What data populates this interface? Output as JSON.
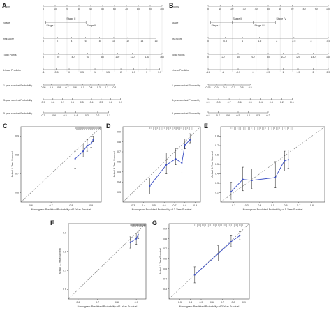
{
  "figure": {
    "colors": {
      "line": "#555555",
      "axis": "#444444",
      "cal_line": "#3b4fc4",
      "bar": "#222222",
      "diag": "#777777",
      "rug": "#666666"
    }
  },
  "nomograms": [
    {
      "letter": "A",
      "rows": [
        {
          "label": "Points",
          "type": "scale",
          "ticks": [
            "0",
            "10",
            "20",
            "30",
            "40",
            "50",
            "60",
            "70",
            "80",
            "90",
            "100"
          ]
        },
        {
          "label": "Stage",
          "type": "stage",
          "items": [
            "Stage I",
            "Stage II",
            "Stage III"
          ]
        },
        {
          "label": "riskScore",
          "type": "scale",
          "ticks": [
            "0",
            "2",
            "4",
            "6",
            "8",
            "10",
            "12",
            "14",
            "16"
          ]
        },
        {
          "label": "Total Points",
          "type": "scale",
          "ticks": [
            "0",
            "20",
            "40",
            "60",
            "80",
            "100",
            "120",
            "140",
            "160"
          ]
        },
        {
          "label": "Linear Predictor",
          "type": "scale",
          "ticks": [
            "-1",
            "-0.5",
            "0",
            "0.5",
            "1",
            "1.5",
            "2",
            "2.5",
            "3",
            "3.5"
          ]
        },
        {
          "label": "1-year survival Probability",
          "type": "scale",
          "ticks": [
            "0.95",
            "0.9",
            "0.8",
            "0.7",
            "0.6",
            "0.5",
            "0.4",
            "0.3",
            "0.2",
            "0.1"
          ]
        },
        {
          "label": "3-year survival Probability",
          "type": "scale",
          "ticks": [
            "0.9",
            "0.8",
            "0.7",
            "0.6",
            "0.5",
            "0.4",
            "0.3",
            "0.2",
            "0.1"
          ]
        },
        {
          "label": "5-year survival Probability",
          "type": "scale",
          "ticks": [
            "0.7",
            "0.6",
            "0.5",
            "0.4",
            "0.3",
            "0.2",
            "0.1"
          ]
        }
      ]
    },
    {
      "letter": "B",
      "rows": [
        {
          "label": "Points",
          "type": "scale",
          "ticks": [
            "0",
            "10",
            "20",
            "30",
            "40",
            "50",
            "60",
            "70",
            "80",
            "90",
            "100"
          ]
        },
        {
          "label": "Stage",
          "type": "stage",
          "items": [
            "Stage I",
            "Stage II",
            "Stage III",
            "Stage IV"
          ]
        },
        {
          "label": "riskScore",
          "type": "scale",
          "ticks": [
            "0",
            "0.5",
            "1",
            "1.5",
            "2",
            "2.5",
            "3",
            "3.5"
          ]
        },
        {
          "label": "Total Points",
          "type": "scale",
          "ticks": [
            "0",
            "20",
            "40",
            "60",
            "80",
            "100",
            "120",
            "140",
            "160"
          ]
        },
        {
          "label": "Linear Predictor",
          "type": "scale",
          "ticks": [
            "-1.5",
            "-1",
            "-0.5",
            "0",
            "0.5",
            "1",
            "1.5",
            "2",
            "2.5"
          ]
        },
        {
          "label": "1-year survival Probability",
          "type": "scale",
          "ticks": [
            "0.95",
            "0.9",
            "0.8",
            "0.7",
            "0.6",
            "0.5"
          ]
        },
        {
          "label": "3-year survival Probability",
          "type": "scale",
          "ticks": [
            "0.9",
            "0.8",
            "0.7",
            "0.6",
            "0.5",
            "0.4",
            "0.3",
            "0.2",
            "0.1"
          ]
        },
        {
          "label": "5-year survival Probability",
          "type": "scale",
          "ticks": [
            "0.8",
            "0.7",
            "0.6",
            "0.5",
            "0.4",
            "0.3",
            "0.2"
          ]
        }
      ]
    }
  ],
  "chart_data": [
    {
      "letter": "C",
      "type": "scatter",
      "xlabel": "Nomogram-Predicted Probability of 1-Year Survival",
      "ylabel": "Actual 1-Year Survival",
      "xlim": [
        0.55,
        0.95
      ],
      "ylim": [
        0.55,
        0.95
      ],
      "xticks": [
        "0.6",
        "0.7",
        "0.8",
        "0.9"
      ],
      "yticks": [
        "0.6",
        "0.7",
        "0.8",
        "0.9"
      ],
      "x": [
        0.82,
        0.86,
        0.88,
        0.9,
        0.91
      ],
      "y": [
        0.78,
        0.82,
        0.85,
        0.86,
        0.88
      ],
      "err_low": [
        0.73,
        0.79,
        0.82,
        0.84,
        0.87
      ],
      "err_high": [
        0.82,
        0.86,
        0.88,
        0.9,
        0.9
      ]
    },
    {
      "letter": "D",
      "type": "scatter",
      "xlabel": "Nomogram-Predicted Probability of 3-Year Survival",
      "ylabel": "Actual 3-Year Survival",
      "xlim": [
        0.2,
        0.95
      ],
      "ylim": [
        0.2,
        0.95
      ],
      "xticks": [
        "0.3",
        "0.4",
        "0.5",
        "0.6",
        "0.7",
        "0.8",
        "0.9"
      ],
      "yticks": [
        "0.3",
        "0.4",
        "0.5",
        "0.6",
        "0.7",
        "0.8",
        "0.9"
      ],
      "x": [
        0.46,
        0.62,
        0.71,
        0.77,
        0.8,
        0.85
      ],
      "y": [
        0.36,
        0.57,
        0.63,
        0.59,
        0.77,
        0.82
      ],
      "err_low": [
        0.28,
        0.48,
        0.57,
        0.49,
        0.73,
        0.79
      ],
      "err_high": [
        0.44,
        0.69,
        0.73,
        0.72,
        0.83,
        0.88
      ]
    },
    {
      "letter": "E",
      "type": "scatter",
      "xlabel": "Nomogram-Predicted Probability of 5-Year Survival",
      "ylabel": "Actual 5-Year Survival",
      "xlim": [
        0.1,
        0.9
      ],
      "ylim": [
        0.1,
        0.9
      ],
      "xticks": [
        "0.2",
        "0.3",
        "0.4",
        "0.5",
        "0.6",
        "0.7",
        "0.8"
      ],
      "yticks": [
        "0.2",
        "0.3",
        "0.4",
        "0.5",
        "0.6",
        "0.7",
        "0.8"
      ],
      "x": [
        0.18,
        0.27,
        0.34,
        0.52,
        0.59,
        0.62
      ],
      "y": [
        0.21,
        0.34,
        0.33,
        0.36,
        0.54,
        0.55
      ],
      "err_low": [
        0.13,
        0.22,
        0.24,
        0.25,
        0.43,
        0.46
      ],
      "err_high": [
        0.31,
        0.47,
        0.45,
        0.53,
        0.64,
        0.65
      ]
    },
    {
      "letter": "F",
      "type": "scatter",
      "xlabel": "Nomogram-Predicted Probability of 1-Year Survival",
      "ylabel": "Actual 1-Year Survival",
      "xlim": [
        0.55,
        0.95
      ],
      "ylim": [
        0.55,
        0.95
      ],
      "xticks": [
        "0.6",
        "0.7",
        "0.8",
        "0.9"
      ],
      "yticks": [
        "0.6",
        "0.7",
        "0.8",
        "0.9"
      ],
      "x": [
        0.87,
        0.9,
        0.91
      ],
      "y": [
        0.85,
        0.87,
        0.89
      ],
      "err_low": [
        0.82,
        0.84,
        0.87
      ],
      "err_high": [
        0.88,
        0.9,
        0.91
      ]
    },
    {
      "letter": "G",
      "type": "scatter",
      "xlabel": "Nomogram-Predicted Probability of 3-Year Survival",
      "ylabel": "Actual 3-Year Survival",
      "xlim": [
        0.2,
        0.95
      ],
      "ylim": [
        0.2,
        0.95
      ],
      "xticks": [
        "0.3",
        "0.4",
        "0.5",
        "0.6",
        "0.7",
        "0.8",
        "0.9"
      ],
      "yticks": [
        "0.3",
        "0.4",
        "0.5",
        "0.6",
        "0.7",
        "0.8",
        "0.9"
      ],
      "x": [
        0.44,
        0.66,
        0.78,
        0.86
      ],
      "y": [
        0.44,
        0.65,
        0.77,
        0.83
      ],
      "err_low": [
        0.36,
        0.58,
        0.72,
        0.79
      ],
      "err_high": [
        0.52,
        0.73,
        0.83,
        0.87
      ]
    }
  ]
}
